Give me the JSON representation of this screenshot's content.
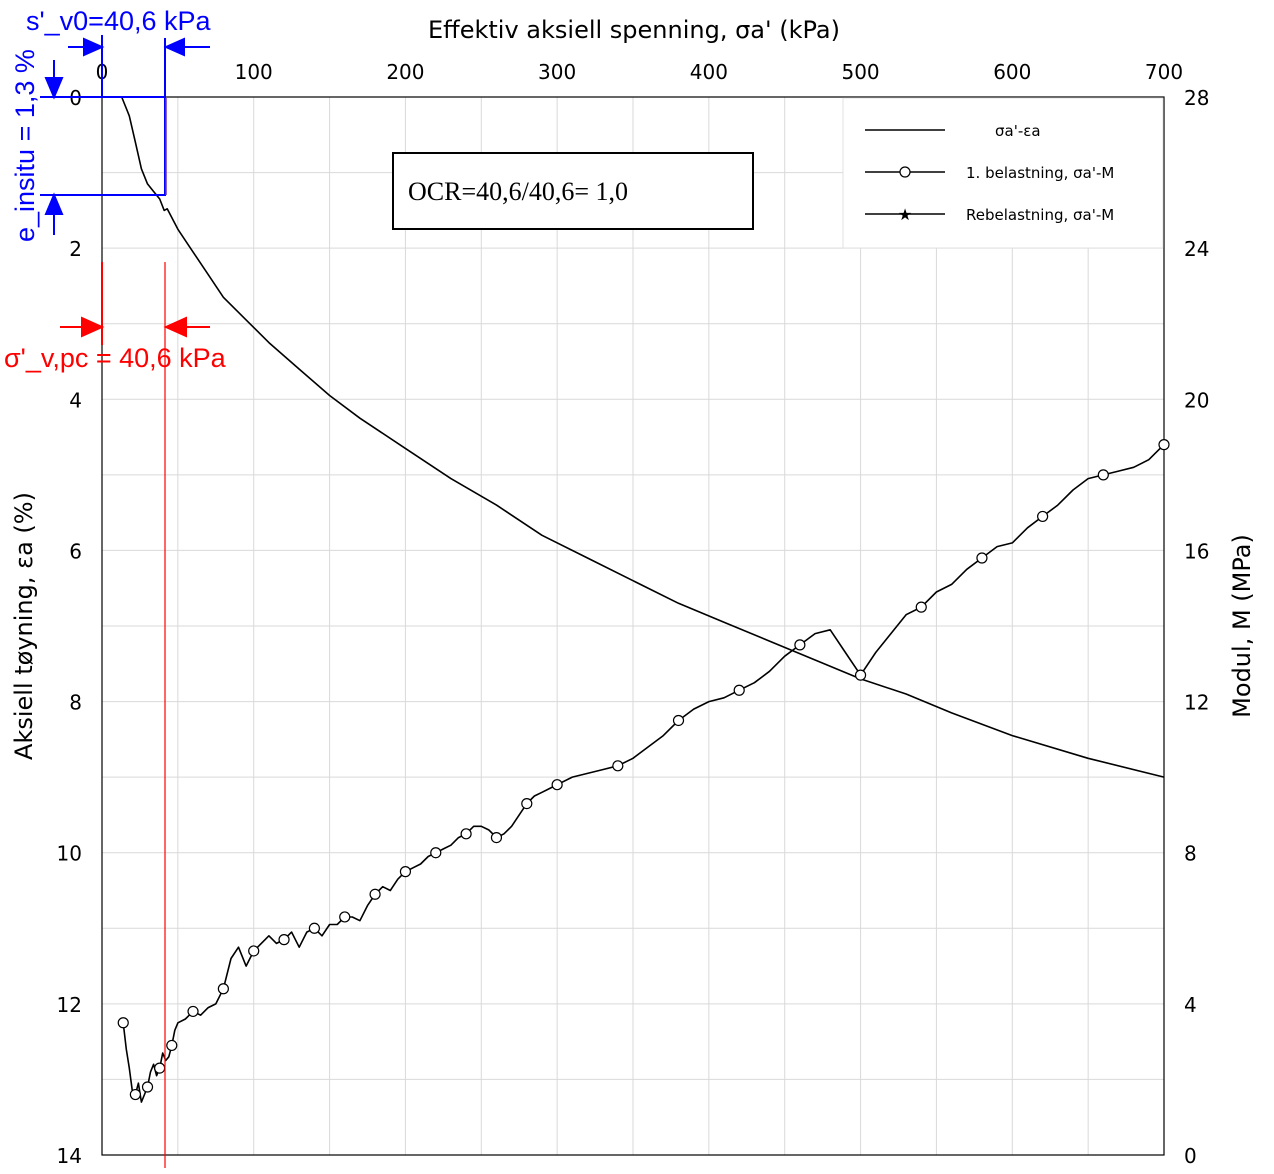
{
  "chart_data": {
    "type": "line",
    "xlabel": "Effektiv aksiell spenning, σa'  (kPa)",
    "ylabel_left": "Aksiell tøyning, εa  (%)",
    "ylabel_right": "Modul, M  (MPa)",
    "xlim": [
      0,
      700
    ],
    "ylim_left": [
      0,
      14
    ],
    "ylim_right": [
      0,
      28
    ],
    "x_ticks": [
      "0",
      "100",
      "200",
      "300",
      "400",
      "500",
      "600",
      "700"
    ],
    "y_left_ticks": [
      "0",
      "2",
      "4",
      "6",
      "8",
      "10",
      "12",
      "14"
    ],
    "y_right_ticks": [
      "0",
      "4",
      "8",
      "12",
      "16",
      "20",
      "24",
      "28"
    ],
    "grid": true,
    "legend_position": "top-right",
    "series": [
      {
        "name": "σa'-εa",
        "axis": "left",
        "marker": "none",
        "x": [
          0,
          5,
          13,
          18,
          22,
          26,
          30,
          34,
          38,
          41,
          43,
          50,
          60,
          70,
          80,
          95,
          110,
          130,
          150,
          170,
          200,
          230,
          260,
          290,
          320,
          350,
          380,
          410,
          440,
          470,
          500,
          530,
          560,
          600,
          650,
          700
        ],
        "y": [
          0,
          0.0,
          0.0,
          0.25,
          0.6,
          0.95,
          1.15,
          1.25,
          1.35,
          1.5,
          1.48,
          1.75,
          2.05,
          2.35,
          2.65,
          2.95,
          3.25,
          3.6,
          3.95,
          4.25,
          4.65,
          5.05,
          5.4,
          5.8,
          6.1,
          6.4,
          6.7,
          6.95,
          7.2,
          7.45,
          7.7,
          7.9,
          8.15,
          8.45,
          8.75,
          9.0
        ]
      },
      {
        "name": "1. belastning, σa'-M",
        "axis": "right",
        "marker": "circle",
        "x": [
          14,
          16,
          18,
          20,
          22,
          24,
          26,
          28,
          30,
          32,
          34,
          36,
          38,
          40,
          42,
          44,
          46,
          48,
          50,
          55,
          60,
          65,
          70,
          75,
          80,
          85,
          90,
          95,
          100,
          105,
          110,
          115,
          120,
          125,
          130,
          135,
          140,
          145,
          150,
          155,
          160,
          165,
          170,
          175,
          180,
          185,
          190,
          195,
          200,
          205,
          210,
          215,
          220,
          225,
          230,
          235,
          240,
          245,
          250,
          255,
          260,
          265,
          270,
          275,
          280,
          285,
          290,
          295,
          300,
          310,
          320,
          330,
          340,
          350,
          360,
          370,
          380,
          390,
          400,
          410,
          420,
          430,
          440,
          450,
          460,
          470,
          480,
          490,
          500,
          510,
          520,
          530,
          540,
          550,
          560,
          570,
          580,
          590,
          600,
          610,
          620,
          630,
          640,
          650,
          660,
          670,
          680,
          690,
          700
        ],
        "y": [
          3.5,
          2.8,
          2.3,
          1.7,
          1.6,
          1.9,
          1.4,
          1.6,
          1.8,
          2.2,
          2.4,
          2.1,
          2.3,
          2.7,
          2.5,
          2.6,
          2.9,
          3.3,
          3.5,
          3.6,
          3.8,
          3.7,
          3.9,
          4.0,
          4.4,
          5.2,
          5.5,
          5.0,
          5.4,
          5.6,
          5.8,
          5.6,
          5.7,
          5.9,
          5.5,
          5.9,
          6.0,
          5.8,
          6.1,
          6.1,
          6.3,
          6.3,
          6.2,
          6.6,
          6.9,
          7.1,
          7.0,
          7.3,
          7.5,
          7.6,
          7.7,
          7.9,
          8.0,
          8.1,
          8.2,
          8.4,
          8.5,
          8.7,
          8.7,
          8.6,
          8.4,
          8.5,
          8.7,
          9.0,
          9.3,
          9.5,
          9.6,
          9.7,
          9.8,
          10.0,
          10.1,
          10.2,
          10.3,
          10.5,
          10.8,
          11.1,
          11.5,
          11.8,
          12.0,
          12.1,
          12.3,
          12.5,
          12.8,
          13.2,
          13.5,
          13.8,
          13.9,
          13.3,
          12.7,
          13.3,
          13.8,
          14.3,
          14.5,
          14.9,
          15.1,
          15.5,
          15.8,
          16.1,
          16.2,
          16.6,
          16.9,
          17.2,
          17.6,
          17.9,
          18.0,
          18.1,
          18.2,
          18.4,
          18.8
        ]
      },
      {
        "name": "Rebelastning, σa'-M",
        "axis": "right",
        "marker": "star",
        "x": [],
        "y": []
      }
    ],
    "annotations": {
      "ocr_box": "OCR=40,6/40,6= 1,0",
      "sv0_label": "s'_v0=40,6 kPa",
      "einsitu_label": "e_insitu = 1,3 %",
      "svpc_label": "σ'_v,pc = 40,6 kPa"
    }
  },
  "colors": {
    "blue": "#0000ff",
    "red": "#ff0000",
    "purple": "#7030a0",
    "curve": "#000000"
  }
}
